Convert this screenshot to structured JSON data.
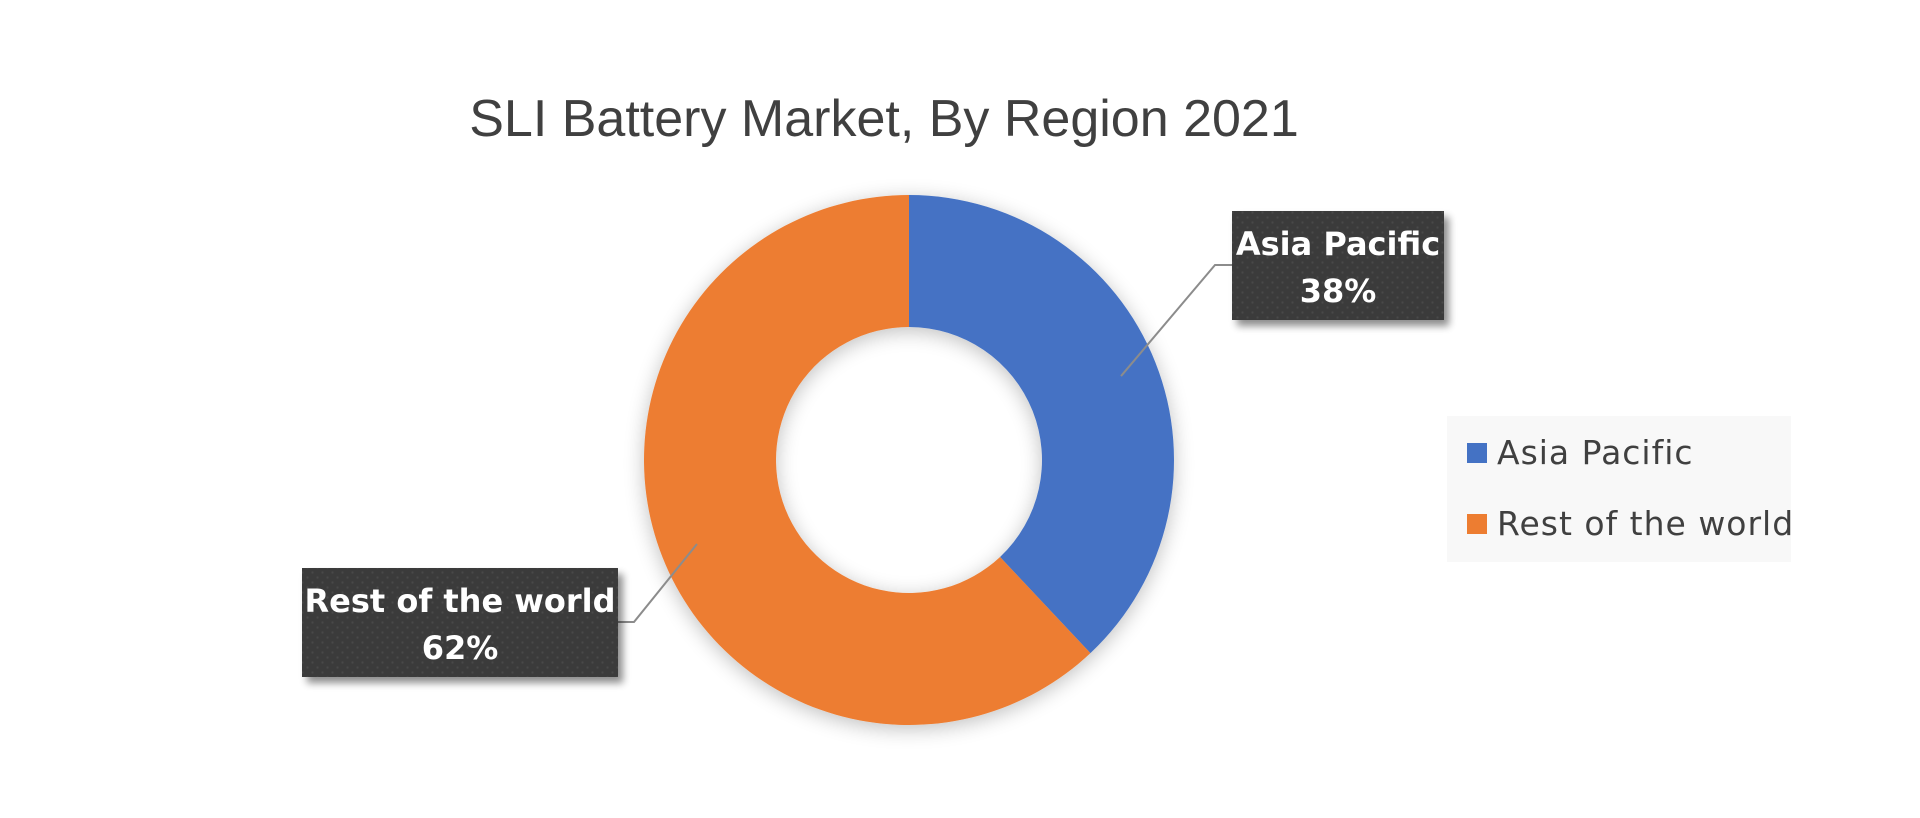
{
  "chart_data": {
    "type": "pie",
    "variant": "donut",
    "title": "SLI Battery Market, By Region 2021",
    "categories": [
      "Asia Pacific",
      "Rest of the world"
    ],
    "values": [
      38,
      62
    ],
    "value_labels": [
      "38%",
      "62%"
    ],
    "colors": [
      "#4472C4",
      "#ED7D31"
    ],
    "legend": {
      "position": "right",
      "items": [
        "Asia Pacific",
        "Rest of the world"
      ]
    },
    "data_label_style": {
      "background": "#3a3a3a",
      "text_color": "#ffffff"
    }
  }
}
